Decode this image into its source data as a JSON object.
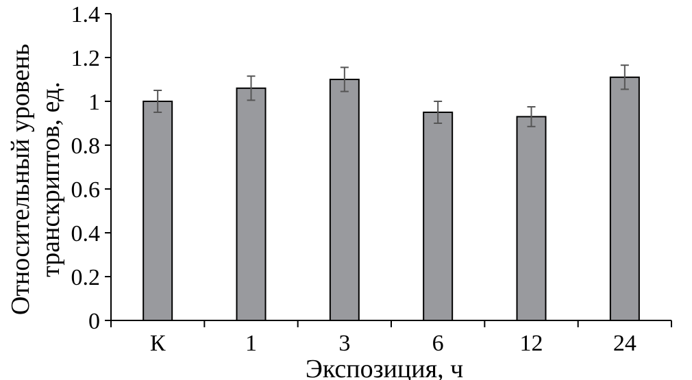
{
  "chart_data": {
    "type": "bar",
    "categories": [
      "К",
      "1",
      "3",
      "6",
      "12",
      "24"
    ],
    "values": [
      1.0,
      1.06,
      1.1,
      0.95,
      0.93,
      1.11
    ],
    "errors": [
      0.05,
      0.055,
      0.055,
      0.05,
      0.045,
      0.055
    ],
    "title": "",
    "xlabel": "Экспозиция, ч",
    "ylabel": [
      "Относительный уровень",
      "транскриптов, ед."
    ],
    "ylim": [
      0,
      1.4
    ],
    "yticks": [
      0,
      0.2,
      0.4,
      0.6,
      0.8,
      1,
      1.2,
      1.4
    ],
    "ytick_labels": [
      "0",
      "0.2",
      "0.4",
      "0.6",
      "0.8",
      "1",
      "1.2",
      "1.4"
    ],
    "grid": false,
    "legend": "none",
    "colors": {
      "bar_fill": "#999a9e",
      "bar_stroke": "#000000",
      "error_bar": "#555555",
      "axis": "#000000"
    }
  }
}
